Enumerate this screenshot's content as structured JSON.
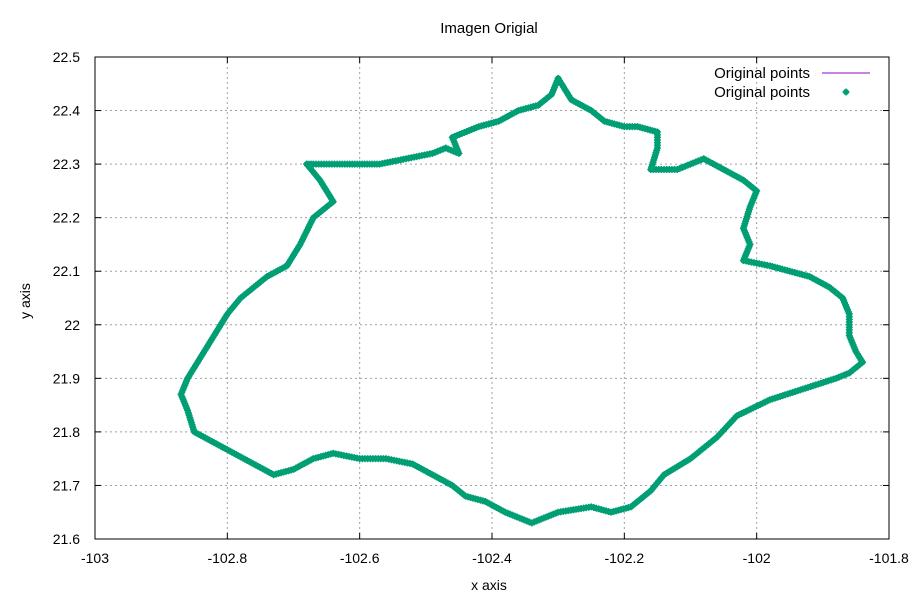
{
  "chart_data": {
    "type": "scatter",
    "title": "Imagen Origial",
    "xlabel": "x axis",
    "ylabel": "y axis",
    "xlim": [
      -103,
      -101.8
    ],
    "ylim": [
      21.6,
      22.5
    ],
    "xticks": [
      "-103",
      "-102.8",
      "-102.6",
      "-102.4",
      "-102.2",
      "-102",
      "-101.8"
    ],
    "yticks": [
      "21.6",
      "21.7",
      "21.8",
      "21.9",
      "22",
      "22.1",
      "22.2",
      "22.3",
      "22.4",
      "22.5"
    ],
    "grid": true,
    "legend_position": "top-right",
    "colors": {
      "line": "#9400d3",
      "points": "#009e73"
    },
    "series": [
      {
        "name": "Original points",
        "style": "line",
        "x": [
          -102.3,
          -102.29,
          -102.28,
          -102.25,
          -102.23,
          -102.2,
          -102.18,
          -102.15,
          -102.15,
          -102.16,
          -102.12,
          -102.1,
          -102.08,
          -102.05,
          -102.02,
          -102.0,
          -102.01,
          -102.02,
          -102.01,
          -102.02,
          -101.98,
          -101.95,
          -101.92,
          -101.89,
          -101.87,
          -101.86,
          -101.86,
          -101.85,
          -101.84,
          -101.85,
          -101.86,
          -101.88,
          -101.93,
          -101.98,
          -102.03,
          -102.06,
          -102.1,
          -102.14,
          -102.16,
          -102.19,
          -102.22,
          -102.25,
          -102.3,
          -102.34,
          -102.38,
          -102.41,
          -102.44,
          -102.46,
          -102.49,
          -102.52,
          -102.56,
          -102.6,
          -102.64,
          -102.67,
          -102.7,
          -102.73,
          -102.76,
          -102.79,
          -102.82,
          -102.85,
          -102.86,
          -102.87,
          -102.86,
          -102.84,
          -102.82,
          -102.8,
          -102.78,
          -102.76,
          -102.74,
          -102.71,
          -102.69,
          -102.67,
          -102.64,
          -102.66,
          -102.68,
          -102.68,
          -102.67,
          -102.63,
          -102.6,
          -102.57,
          -102.53,
          -102.49,
          -102.47,
          -102.45,
          -102.46,
          -102.42,
          -102.39,
          -102.36,
          -102.33,
          -102.31,
          -102.3
        ],
        "y": [
          22.46,
          22.44,
          22.42,
          22.4,
          22.38,
          22.37,
          22.37,
          22.36,
          22.33,
          22.29,
          22.29,
          22.3,
          22.31,
          22.29,
          22.27,
          22.25,
          22.22,
          22.18,
          22.15,
          22.12,
          22.11,
          22.1,
          22.09,
          22.07,
          22.05,
          22.02,
          21.98,
          21.95,
          21.93,
          21.92,
          21.91,
          21.9,
          21.88,
          21.86,
          21.83,
          21.79,
          21.75,
          21.72,
          21.69,
          21.66,
          21.65,
          21.66,
          21.65,
          21.63,
          21.65,
          21.67,
          21.68,
          21.7,
          21.72,
          21.74,
          21.75,
          21.75,
          21.76,
          21.75,
          21.73,
          21.72,
          21.74,
          21.76,
          21.78,
          21.8,
          21.84,
          21.87,
          21.9,
          21.94,
          21.98,
          22.02,
          22.05,
          22.07,
          22.09,
          22.11,
          22.15,
          22.2,
          22.23,
          22.27,
          22.3,
          22.3,
          22.3,
          22.3,
          22.3,
          22.3,
          22.31,
          22.32,
          22.33,
          22.32,
          22.35,
          22.37,
          22.38,
          22.4,
          22.41,
          22.43,
          22.46
        ]
      },
      {
        "name": "Original points",
        "style": "points",
        "x": [
          -102.3,
          -102.29,
          -102.28,
          -102.25,
          -102.23,
          -102.2,
          -102.18,
          -102.15,
          -102.15,
          -102.16,
          -102.12,
          -102.1,
          -102.08,
          -102.05,
          -102.02,
          -102.0,
          -102.01,
          -102.02,
          -102.01,
          -102.02,
          -101.98,
          -101.95,
          -101.92,
          -101.89,
          -101.87,
          -101.86,
          -101.86,
          -101.85,
          -101.84,
          -101.85,
          -101.86,
          -101.88,
          -101.93,
          -101.98,
          -102.03,
          -102.06,
          -102.1,
          -102.14,
          -102.16,
          -102.19,
          -102.22,
          -102.25,
          -102.3,
          -102.34,
          -102.38,
          -102.41,
          -102.44,
          -102.46,
          -102.49,
          -102.52,
          -102.56,
          -102.6,
          -102.64,
          -102.67,
          -102.7,
          -102.73,
          -102.76,
          -102.79,
          -102.82,
          -102.85,
          -102.86,
          -102.87,
          -102.86,
          -102.84,
          -102.82,
          -102.8,
          -102.78,
          -102.76,
          -102.74,
          -102.71,
          -102.69,
          -102.67,
          -102.64,
          -102.66,
          -102.68,
          -102.68,
          -102.67,
          -102.63,
          -102.6,
          -102.57,
          -102.53,
          -102.49,
          -102.47,
          -102.45,
          -102.46,
          -102.42,
          -102.39,
          -102.36,
          -102.33,
          -102.31,
          -102.3
        ],
        "y": [
          22.46,
          22.44,
          22.42,
          22.4,
          22.38,
          22.37,
          22.37,
          22.36,
          22.33,
          22.29,
          22.29,
          22.3,
          22.31,
          22.29,
          22.27,
          22.25,
          22.22,
          22.18,
          22.15,
          22.12,
          22.11,
          22.1,
          22.09,
          22.07,
          22.05,
          22.02,
          21.98,
          21.95,
          21.93,
          21.92,
          21.91,
          21.9,
          21.88,
          21.86,
          21.83,
          21.79,
          21.75,
          21.72,
          21.69,
          21.66,
          21.65,
          21.66,
          21.65,
          21.63,
          21.65,
          21.67,
          21.68,
          21.7,
          21.72,
          21.74,
          21.75,
          21.75,
          21.76,
          21.75,
          21.73,
          21.72,
          21.74,
          21.76,
          21.78,
          21.8,
          21.84,
          21.87,
          21.9,
          21.94,
          21.98,
          22.02,
          22.05,
          22.07,
          22.09,
          22.11,
          22.15,
          22.2,
          22.23,
          22.27,
          22.3,
          22.3,
          22.3,
          22.3,
          22.3,
          22.3,
          22.31,
          22.32,
          22.33,
          22.32,
          22.35,
          22.37,
          22.38,
          22.4,
          22.41,
          22.43,
          22.46
        ]
      }
    ]
  }
}
